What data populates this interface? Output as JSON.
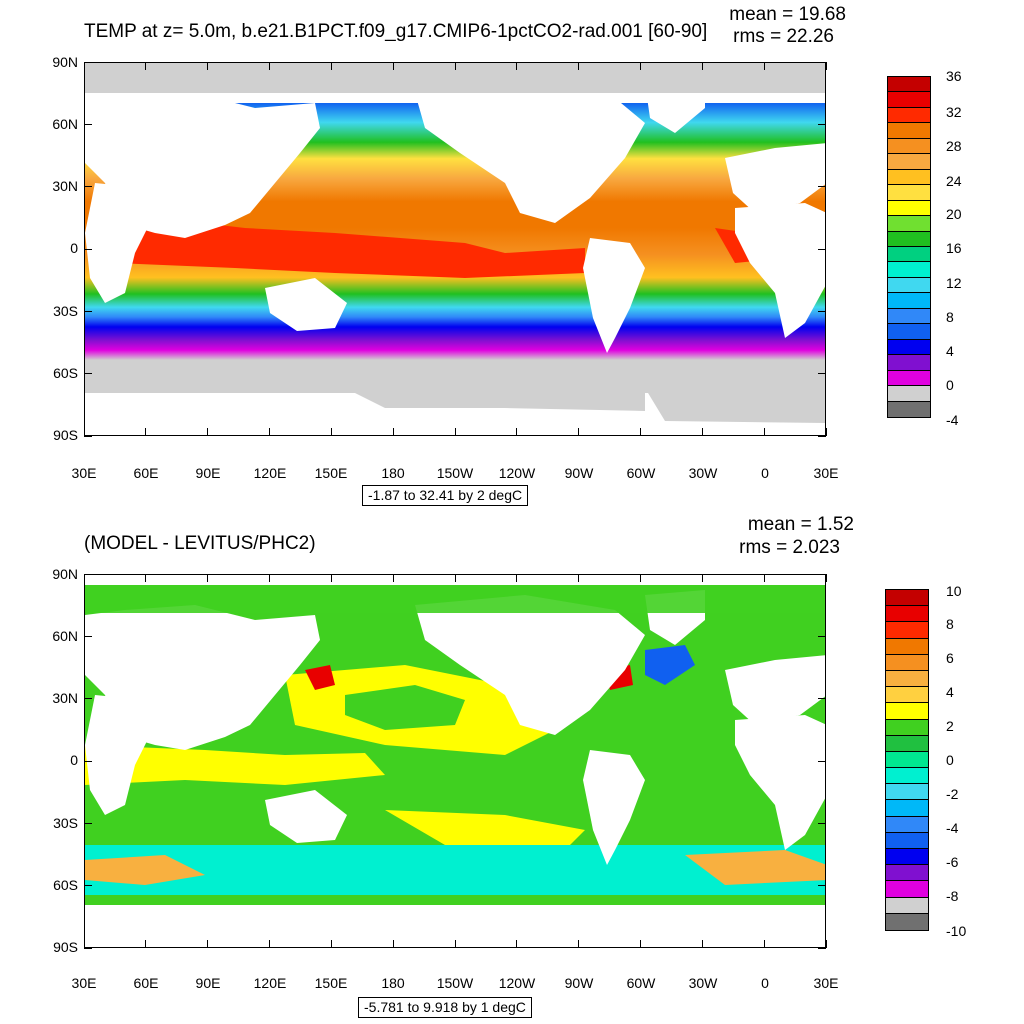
{
  "colors": {
    "land": "#ffffff",
    "sea_ice": "#d0d0d0"
  },
  "top_panel": {
    "title": "TEMP at z=   5.0m, b.e21.B1PCT.f09_g17.CMIP6-1pctCO2-rad.001 [60-90]",
    "mean": "mean = 19.68",
    "rms": "rms = 22.26",
    "contour_info": "-1.87 to 32.41 by 2 degC",
    "lat_labels": [
      "90N",
      "60N",
      "30N",
      "0",
      "30S",
      "60S",
      "90S"
    ],
    "lon_labels": [
      "30E",
      "60E",
      "90E",
      "120E",
      "150E",
      "180",
      "150W",
      "120W",
      "90W",
      "60W",
      "30W",
      "0",
      "30E"
    ],
    "colorbar": {
      "labels": [
        "36",
        "32",
        "28",
        "24",
        "20",
        "16",
        "12",
        "8",
        "4",
        "0",
        "-4"
      ],
      "colors": [
        "#c40000",
        "#e80000",
        "#ff2a00",
        "#f07800",
        "#f59020",
        "#f8a840",
        "#ffc020",
        "#ffe040",
        "#ffff00",
        "#70e030",
        "#20c020",
        "#00d080",
        "#00f0d0",
        "#40d8f0",
        "#00b8f8",
        "#3088f8",
        "#1060f0",
        "#0000f0",
        "#8010d0",
        "#e000e0",
        "#d0d0d0",
        "#707070"
      ]
    }
  },
  "bottom_panel": {
    "title": "(MODEL - LEVITUS/PHC2)",
    "mean": "mean = 1.52",
    "rms": "rms = 2.023",
    "contour_info": "-5.781 to 9.918 by 1 degC",
    "lat_labels": [
      "90N",
      "60N",
      "30N",
      "0",
      "30S",
      "60S",
      "90S"
    ],
    "lon_labels": [
      "30E",
      "60E",
      "90E",
      "120E",
      "150E",
      "180",
      "150W",
      "120W",
      "90W",
      "60W",
      "30W",
      "0",
      "30E"
    ],
    "colorbar": {
      "labels": [
        "10",
        "8",
        "6",
        "4",
        "2",
        "0",
        "-2",
        "-4",
        "-6",
        "-8",
        "-10"
      ],
      "colors": [
        "#c40000",
        "#e80000",
        "#ff2a00",
        "#f07800",
        "#f59020",
        "#f8b040",
        "#ffd040",
        "#ffff00",
        "#40d020",
        "#20c040",
        "#00e890",
        "#00f0d0",
        "#40d8f0",
        "#00b8f8",
        "#3088f8",
        "#1060f0",
        "#0000f0",
        "#8010d0",
        "#e000e0",
        "#d0d0d0",
        "#707070"
      ]
    }
  }
}
